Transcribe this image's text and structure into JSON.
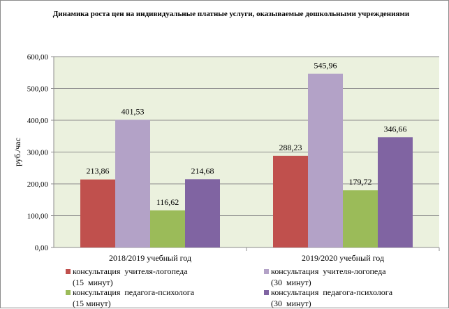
{
  "chart_data": {
    "type": "bar",
    "title": "Динамика роста цен на индивидуальные платные услуги, оказываемые дошкольными учреждениями",
    "ylabel": "руб./час",
    "xlabel": "",
    "ylim": [
      0,
      600
    ],
    "yticks": [
      "0,00",
      "100,00",
      "200,00",
      "300,00",
      "400,00",
      "500,00",
      "600,00"
    ],
    "ytick_values": [
      0,
      100,
      200,
      300,
      400,
      500,
      600
    ],
    "categories": [
      "2018/2019   учебный год",
      "2019/2020   учебный год"
    ],
    "grid": true,
    "legend_position": "bottom",
    "series": [
      {
        "name": "консультация  учителя-логопеда (15  минут)",
        "name_lines": [
          "консультация  учителя-логопеда",
          "(15  минут)"
        ],
        "color": "#c0504d",
        "values": [
          213.86,
          288.23
        ],
        "labels": [
          "213,86",
          "288,23"
        ]
      },
      {
        "name": "консультация  учителя-логопеда (30  минут)",
        "name_lines": [
          "консультация  учителя-логопеда",
          "(30  минут)"
        ],
        "color": "#b3a2c7",
        "values": [
          401.53,
          545.96
        ],
        "labels": [
          "401,53",
          "545,96"
        ]
      },
      {
        "name": "консультация  педагога-психолога (15 минут)",
        "name_lines": [
          "консультация  педагога-психолога",
          "(15 минут)"
        ],
        "color": "#9bbb59",
        "values": [
          116.62,
          179.72
        ],
        "labels": [
          "116,62",
          "179,72"
        ]
      },
      {
        "name": "консультация  педагога-психолога (30  минут)",
        "name_lines": [
          "консультация  педагога-психолога",
          "(30  минут)"
        ],
        "color": "#8064a2",
        "values": [
          214.68,
          346.66
        ],
        "labels": [
          "214,68",
          "346,66"
        ]
      }
    ],
    "plot_background": "#ebf1de"
  }
}
